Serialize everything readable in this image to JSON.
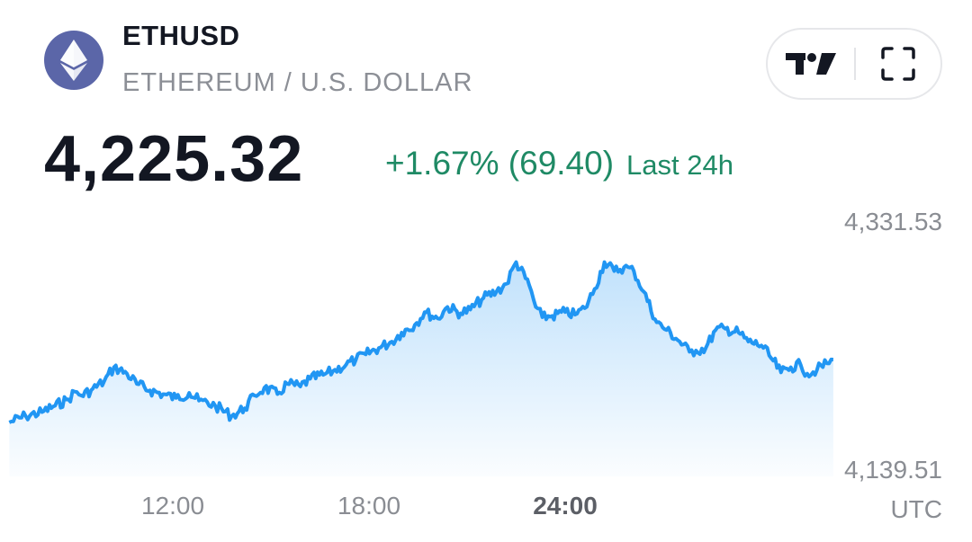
{
  "header": {
    "logo_icon": "ethereum-diamond-icon",
    "symbol": "ETHUSD",
    "name": "ETHEREUM / U.S. DOLLAR"
  },
  "toolbar": {
    "buttons": [
      {
        "icon": "tradingview-logo-icon"
      },
      {
        "icon": "fullscreen-icon"
      }
    ]
  },
  "quote": {
    "price": "4,225.32",
    "change": "+1.67% (69.40)",
    "period": "Last 24h",
    "change_color": "#1f8a65"
  },
  "chart_data": {
    "type": "area",
    "line_color": "#2196f3",
    "y_tick_labels": [
      "4,331.53",
      "4,139.51"
    ],
    "ylim": [
      4139.51,
      4331.53
    ],
    "x_tick_labels": [
      "12:00",
      "18:00",
      "24:00"
    ],
    "x_unit_label": "UTC",
    "x_hours": [
      7.0,
      7.5,
      8.0,
      8.4,
      8.8,
      9.0,
      9.2,
      9.5,
      9.9,
      10.2,
      10.6,
      10.9,
      11.3,
      11.7,
      12.1,
      12.5,
      12.8,
      13.3,
      13.8,
      14.2,
      14.5,
      14.8,
      15.2,
      15.5,
      15.9,
      16.2,
      16.6,
      16.9,
      17.3,
      17.6,
      17.9,
      18.3,
      18.7,
      19.0,
      19.4,
      19.7,
      20.1,
      20.4,
      20.8,
      21.1,
      21.5,
      21.9,
      22.2,
      22.5,
      22.9,
      23.1,
      23.3,
      23.6,
      24.0,
      24.3,
      24.6,
      24.9,
      25.2,
      25.5,
      25.8,
      26.1,
      26.4,
      26.8,
      27.1,
      27.5,
      27.8,
      28.0,
      28.3,
      28.6,
      28.9,
      29.3,
      29.6,
      30.0,
      30.3,
      30.6,
      30.9,
      31.2,
      31.4,
      31.7,
      32.0,
      32.2
    ],
    "values": [
      4176,
      4181,
      4184,
      4189,
      4194,
      4200,
      4197,
      4201,
      4208,
      4219,
      4214,
      4206,
      4201,
      4198,
      4195,
      4199,
      4193,
      4189,
      4181,
      4187,
      4197,
      4203,
      4198,
      4206,
      4204,
      4210,
      4213,
      4216,
      4221,
      4225,
      4229,
      4234,
      4239,
      4246,
      4252,
      4262,
      4257,
      4266,
      4261,
      4264,
      4273,
      4278,
      4284,
      4301,
      4283,
      4266,
      4258,
      4259,
      4262,
      4260,
      4265,
      4280,
      4301,
      4294,
      4297,
      4294,
      4278,
      4254,
      4248,
      4239,
      4231,
      4232,
      4234,
      4248,
      4249,
      4246,
      4239,
      4236,
      4226,
      4215,
      4219,
      4221,
      4214,
      4217,
      4222,
      4225
    ]
  }
}
